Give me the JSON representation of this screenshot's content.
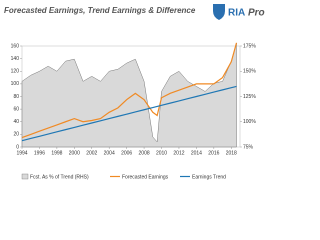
{
  "chart_data": {
    "type": "line",
    "title": "Forecasted Earnings, Trend Earnings & Difference",
    "logo": [
      "RIA",
      "Pro"
    ],
    "x": [
      1994,
      1995,
      1996,
      1997,
      1998,
      1999,
      2000,
      2001,
      2002,
      2003,
      2004,
      2005,
      2006,
      2007,
      2008,
      2009,
      2009.5,
      2010,
      2011,
      2012,
      2013,
      2014,
      2015,
      2016,
      2017,
      2018,
      2018.6
    ],
    "xlim": [
      1994,
      2019
    ],
    "xticks": [
      1994,
      1996,
      1998,
      2000,
      2002,
      2004,
      2006,
      2008,
      2010,
      2012,
      2014,
      2016,
      2018
    ],
    "ylim": [
      0,
      160
    ],
    "yticks": [
      0,
      20,
      40,
      60,
      80,
      100,
      120,
      140,
      160
    ],
    "y2lim": [
      75,
      175
    ],
    "y2ticks": [
      {
        "value": 75,
        "label": "75%"
      },
      {
        "value": 100,
        "label": "100%"
      },
      {
        "value": 125,
        "label": "125%"
      },
      {
        "value": 150,
        "label": "150%"
      },
      {
        "value": 175,
        "label": "175%"
      }
    ],
    "series": [
      {
        "name": "Fcst. As % of Trend (RHS)",
        "color": "#d9d9d9",
        "axis": "y2",
        "kind": "area",
        "values": [
          140,
          146,
          150,
          155,
          150,
          160,
          162,
          140,
          145,
          140,
          150,
          152,
          158,
          162,
          140,
          85,
          80,
          130,
          145,
          150,
          140,
          135,
          130,
          138,
          140,
          160,
          178
        ]
      },
      {
        "name": "Forecasted Earnings",
        "color": "#f08a24",
        "kind": "line",
        "values": [
          15,
          20,
          25,
          30,
          35,
          40,
          45,
          40,
          42,
          45,
          55,
          62,
          75,
          85,
          75,
          55,
          50,
          78,
          85,
          90,
          95,
          100,
          100,
          100,
          110,
          135,
          165
        ]
      },
      {
        "name": "Earnings Trend",
        "color": "#1f77b4",
        "kind": "line",
        "values": [
          10,
          13.5,
          17,
          20.5,
          24,
          27.5,
          31,
          34.5,
          38,
          41.5,
          45,
          48.5,
          52,
          55.5,
          59,
          62.5,
          64.3,
          66,
          69.5,
          73,
          76.5,
          80,
          83.5,
          87,
          90.5,
          94,
          96
        ]
      }
    ]
  }
}
